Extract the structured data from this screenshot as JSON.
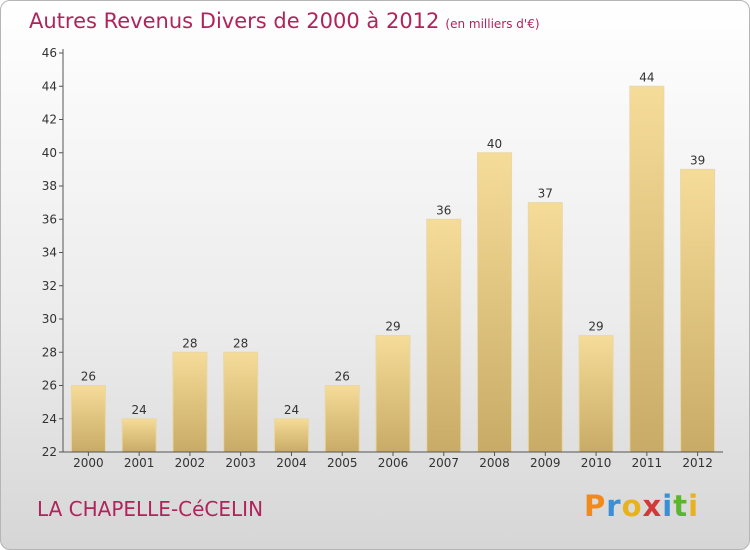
{
  "title": "Autres Revenus Divers de 2000 à 2012",
  "unit": "(en milliers d'€)",
  "city": "LA CHAPELLE-CéCELIN",
  "logo": {
    "letters": [
      "P",
      "r",
      "o",
      "x",
      "i",
      "t",
      "i"
    ],
    "colors": [
      "#f08a1c",
      "#3a8fd6",
      "#e8b21e",
      "#d23a3a",
      "#3a8fd6",
      "#5cb531",
      "#e8b21e"
    ]
  },
  "chart_data": {
    "type": "bar",
    "categories": [
      "2000",
      "2001",
      "2002",
      "2003",
      "2004",
      "2005",
      "2006",
      "2007",
      "2008",
      "2009",
      "2010",
      "2011",
      "2012"
    ],
    "values": [
      26,
      24,
      28,
      28,
      24,
      26,
      29,
      36,
      40,
      37,
      29,
      44,
      39
    ],
    "yticks": [
      "22",
      "24",
      "26",
      "28",
      "30",
      "32",
      "34",
      "36",
      "38",
      "40",
      "42",
      "44",
      "46"
    ],
    "ylim": [
      22,
      46
    ],
    "bar_color_top": "#f5dc98",
    "bar_color_bottom": "#c8ab66",
    "grid": false
  }
}
